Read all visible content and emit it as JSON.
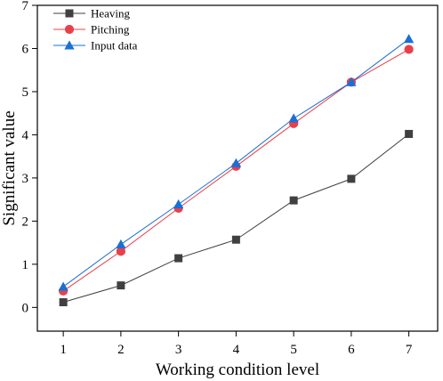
{
  "chart_data": {
    "type": "line",
    "xlabel": "Working condition level",
    "ylabel": "Significant value",
    "xlim": [
      0.55,
      7.5
    ],
    "ylim": [
      -0.55,
      7
    ],
    "x_ticks": [
      1,
      2,
      3,
      4,
      5,
      6,
      7
    ],
    "y_ticks": [
      0,
      1,
      2,
      3,
      4,
      5,
      6,
      7
    ],
    "legend_placement": "top-left",
    "grid": false,
    "x": [
      1,
      2,
      3,
      4,
      5,
      6,
      7
    ],
    "series": [
      {
        "name": "Heaving",
        "values": [
          0.12,
          0.51,
          1.14,
          1.57,
          2.48,
          2.98,
          4.02
        ],
        "color": "#404040",
        "marker": "square"
      },
      {
        "name": "Pitching",
        "values": [
          0.38,
          1.3,
          2.3,
          3.27,
          4.26,
          5.22,
          5.98
        ],
        "color": "#e8404a",
        "marker": "circle"
      },
      {
        "name": "Input data",
        "values": [
          0.48,
          1.46,
          2.39,
          3.34,
          4.38,
          5.22,
          6.22
        ],
        "color": "#1a6fd6",
        "marker": "triangle"
      }
    ]
  }
}
